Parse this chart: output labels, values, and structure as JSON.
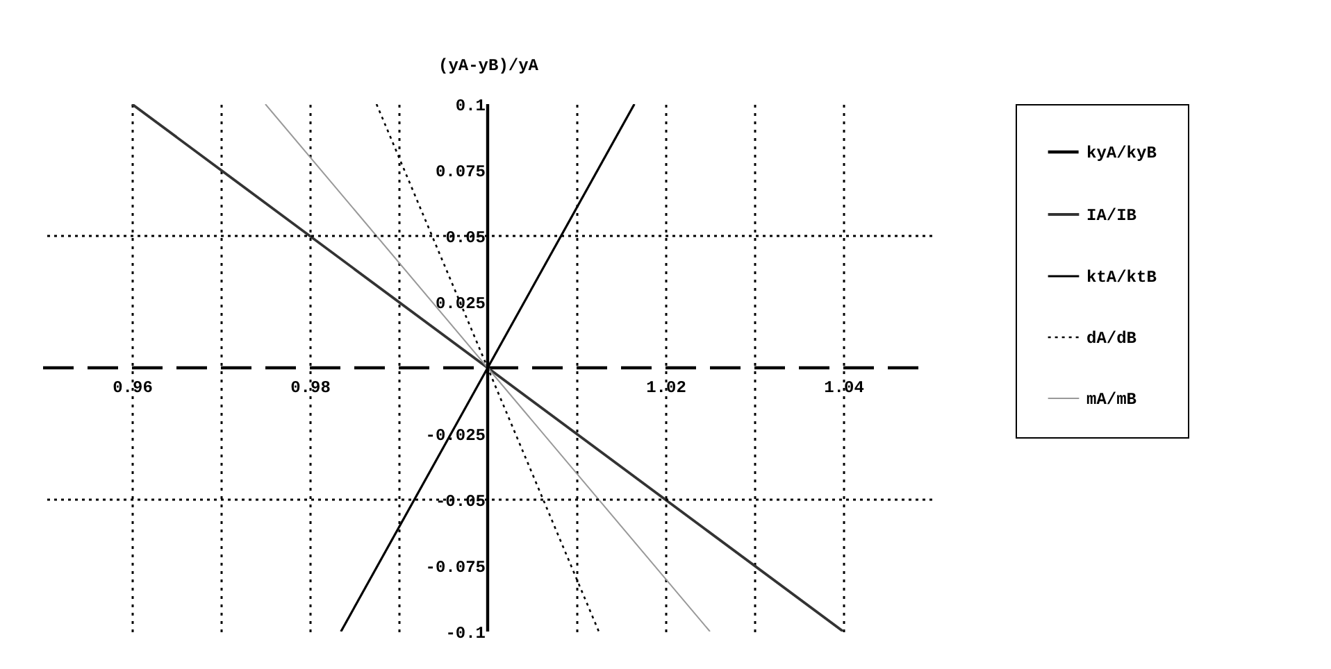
{
  "chart_data": {
    "type": "line",
    "ylabel": "(yA-yB)/yA",
    "xlim": [
      0.95,
      1.05
    ],
    "ylim": [
      -0.1,
      0.1
    ],
    "xticks": [
      0.96,
      {
        "value": 0.97,
        "label": null
      },
      0.98,
      {
        "value": 0.99,
        "label": null
      },
      {
        "value": 1.01,
        "label": null
      },
      1.02,
      {
        "value": 1.03,
        "label": null
      },
      1.04
    ],
    "yticks": [
      -0.1,
      -0.075,
      -0.05,
      -0.025,
      0.025,
      0.05,
      0.075,
      0.1
    ],
    "grid": "x",
    "legend": "right",
    "ref_lines": [
      {
        "axis": "x",
        "value": 1,
        "line_style": "solid"
      },
      {
        "axis": "y",
        "value": 0.05,
        "line_style": "dotted"
      },
      {
        "axis": "y",
        "value": -0.05,
        "line_style": "dotted"
      }
    ],
    "series": [
      {
        "name": "kyA/kyB",
        "color": "#000000",
        "line_style": "dashed",
        "x": [
          0.95,
          1.05
        ],
        "values": [
          0,
          0
        ]
      },
      {
        "name": "IA/IB",
        "color": "#333333",
        "line_style": "solid",
        "x": [
          0.96,
          1.0,
          1.04
        ],
        "values": [
          0.1,
          0,
          -0.1
        ]
      },
      {
        "name": "ktA/ktB",
        "color": "#000000",
        "line_style": "solid",
        "x": [
          0.9835,
          1.0,
          1.0165
        ],
        "values": [
          -0.1,
          0,
          0.1
        ]
      },
      {
        "name": "dA/dB",
        "color": "#000000",
        "line_style": "dotted",
        "x": [
          0.9875,
          1.0,
          1.0125
        ],
        "values": [
          0.1,
          0,
          -0.1
        ]
      },
      {
        "name": "mA/mB",
        "color": "#999999",
        "line_style": "solid",
        "x": [
          0.975,
          1.0,
          1.025
        ],
        "values": [
          0.1,
          0,
          -0.1
        ]
      }
    ]
  }
}
